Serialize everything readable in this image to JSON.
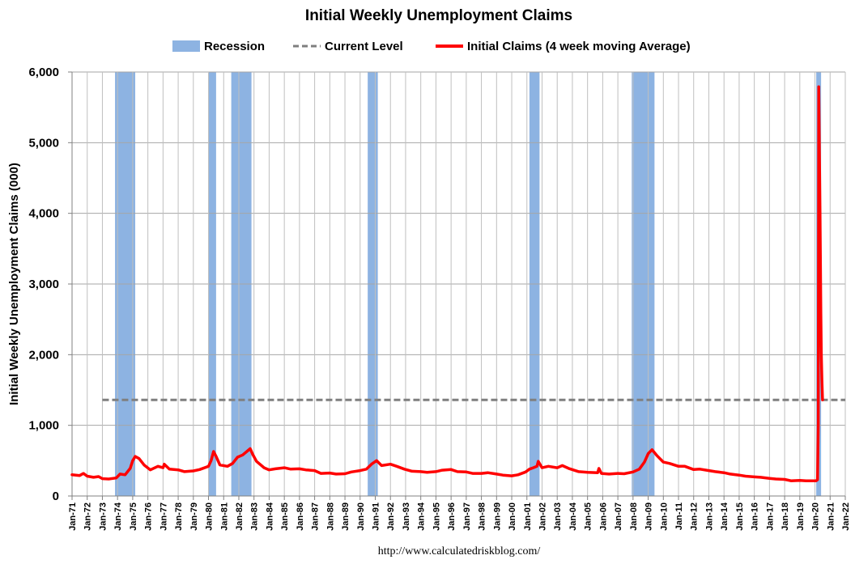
{
  "chart_data": {
    "type": "line",
    "title": "Initial Weekly Unemployment Claims",
    "ylabel": "Initial Weekly Unemployment Claims (000)",
    "xlabel": "",
    "source_note": "http://www.calculatedriskblog.com/",
    "ylim": [
      0,
      6000
    ],
    "xlim": [
      "1971-01",
      "2022-01"
    ],
    "grid": true,
    "legend_placement": "top",
    "yticks": [
      "0",
      "1,000",
      "2,000",
      "3,000",
      "4,000",
      "5,000",
      "6,000"
    ],
    "xticks": [
      "Jan-71",
      "Jan-72",
      "Jan-73",
      "Jan-74",
      "Jan-75",
      "Jan-76",
      "Jan-77",
      "Jan-78",
      "Jan-79",
      "Jan-80",
      "Jan-81",
      "Jan-82",
      "Jan-83",
      "Jan-84",
      "Jan-85",
      "Jan-86",
      "Jan-87",
      "Jan-88",
      "Jan-89",
      "Jan-90",
      "Jan-91",
      "Jan-92",
      "Jan-93",
      "Jan-94",
      "Jan-95",
      "Jan-96",
      "Jan-97",
      "Jan-98",
      "Jan-99",
      "Jan-00",
      "Jan-01",
      "Jan-02",
      "Jan-03",
      "Jan-04",
      "Jan-05",
      "Jan-06",
      "Jan-07",
      "Jan-08",
      "Jan-09",
      "Jan-10",
      "Jan-11",
      "Jan-12",
      "Jan-13",
      "Jan-14",
      "Jan-15",
      "Jan-16",
      "Jan-17",
      "Jan-18",
      "Jan-19",
      "Jan-20",
      "Jan-21",
      "Jan-22"
    ],
    "legend": {
      "recession": "Recession",
      "current": "Current Level",
      "claims": "Initial Claims (4 week moving Average)"
    },
    "colors": {
      "recession": "#8db3e2",
      "current": "#7f7f7f",
      "claims": "#ff0000",
      "grid": "#a6a6a6"
    },
    "recessions": [
      {
        "start": "1973-11",
        "end": "1975-03"
      },
      {
        "start": "1980-01",
        "end": "1980-07"
      },
      {
        "start": "1981-07",
        "end": "1982-11"
      },
      {
        "start": "1990-07",
        "end": "1991-03"
      },
      {
        "start": "2001-03",
        "end": "2001-11"
      },
      {
        "start": "2007-12",
        "end": "2009-06"
      },
      {
        "start": "2020-02",
        "end": "2020-04"
      }
    ],
    "current_level": {
      "value": 1360,
      "x_start": "1973-01",
      "x_end": "2022-01"
    },
    "series": [
      {
        "name": "Initial Claims (4 week moving Average)",
        "points": [
          [
            "1971-01",
            300
          ],
          [
            "1971-07",
            290
          ],
          [
            "1971-10",
            320
          ],
          [
            "1972-01",
            280
          ],
          [
            "1972-06",
            265
          ],
          [
            "1972-10",
            275
          ],
          [
            "1973-01",
            245
          ],
          [
            "1973-06",
            240
          ],
          [
            "1973-12",
            255
          ],
          [
            "1974-03",
            310
          ],
          [
            "1974-07",
            300
          ],
          [
            "1974-11",
            390
          ],
          [
            "1975-01",
            500
          ],
          [
            "1975-03",
            560
          ],
          [
            "1975-06",
            530
          ],
          [
            "1975-10",
            440
          ],
          [
            "1976-03",
            370
          ],
          [
            "1976-09",
            420
          ],
          [
            "1977-01",
            400
          ],
          [
            "1977-02",
            450
          ],
          [
            "1977-06",
            380
          ],
          [
            "1978-01",
            370
          ],
          [
            "1978-06",
            345
          ],
          [
            "1979-01",
            355
          ],
          [
            "1979-06",
            375
          ],
          [
            "1980-01",
            420
          ],
          [
            "1980-03",
            500
          ],
          [
            "1980-05",
            630
          ],
          [
            "1980-07",
            560
          ],
          [
            "1980-10",
            440
          ],
          [
            "1981-04",
            420
          ],
          [
            "1981-08",
            460
          ],
          [
            "1981-12",
            550
          ],
          [
            "1982-04",
            580
          ],
          [
            "1982-08",
            640
          ],
          [
            "1982-10",
            670
          ],
          [
            "1982-12",
            590
          ],
          [
            "1983-03",
            490
          ],
          [
            "1983-09",
            400
          ],
          [
            "1984-01",
            370
          ],
          [
            "1984-06",
            385
          ],
          [
            "1985-01",
            400
          ],
          [
            "1985-06",
            380
          ],
          [
            "1986-01",
            385
          ],
          [
            "1986-06",
            370
          ],
          [
            "1987-01",
            360
          ],
          [
            "1987-06",
            320
          ],
          [
            "1988-01",
            325
          ],
          [
            "1988-06",
            310
          ],
          [
            "1989-01",
            315
          ],
          [
            "1989-06",
            340
          ],
          [
            "1990-01",
            360
          ],
          [
            "1990-06",
            380
          ],
          [
            "1990-10",
            450
          ],
          [
            "1991-02",
            500
          ],
          [
            "1991-06",
            430
          ],
          [
            "1992-01",
            450
          ],
          [
            "1992-06",
            420
          ],
          [
            "1992-12",
            380
          ],
          [
            "1993-06",
            350
          ],
          [
            "1994-01",
            345
          ],
          [
            "1994-06",
            335
          ],
          [
            "1995-01",
            345
          ],
          [
            "1995-06",
            365
          ],
          [
            "1996-01",
            375
          ],
          [
            "1996-06",
            345
          ],
          [
            "1997-01",
            340
          ],
          [
            "1997-06",
            320
          ],
          [
            "1998-01",
            320
          ],
          [
            "1998-06",
            330
          ],
          [
            "1999-01",
            310
          ],
          [
            "1999-06",
            295
          ],
          [
            "2000-01",
            285
          ],
          [
            "2000-06",
            300
          ],
          [
            "2000-12",
            340
          ],
          [
            "2001-03",
            380
          ],
          [
            "2001-06",
            400
          ],
          [
            "2001-09",
            420
          ],
          [
            "2001-10",
            490
          ],
          [
            "2002-01",
            400
          ],
          [
            "2002-06",
            420
          ],
          [
            "2003-01",
            400
          ],
          [
            "2003-05",
            430
          ],
          [
            "2003-10",
            390
          ],
          [
            "2004-06",
            345
          ],
          [
            "2005-01",
            335
          ],
          [
            "2005-09",
            330
          ],
          [
            "2005-10",
            390
          ],
          [
            "2005-12",
            320
          ],
          [
            "2006-06",
            310
          ],
          [
            "2007-01",
            320
          ],
          [
            "2007-06",
            315
          ],
          [
            "2008-01",
            340
          ],
          [
            "2008-06",
            380
          ],
          [
            "2008-10",
            480
          ],
          [
            "2009-01",
            600
          ],
          [
            "2009-04",
            655
          ],
          [
            "2009-08",
            570
          ],
          [
            "2010-01",
            480
          ],
          [
            "2010-06",
            460
          ],
          [
            "2011-01",
            420
          ],
          [
            "2011-06",
            420
          ],
          [
            "2012-01",
            375
          ],
          [
            "2012-06",
            380
          ],
          [
            "2013-01",
            360
          ],
          [
            "2013-06",
            345
          ],
          [
            "2014-01",
            330
          ],
          [
            "2014-06",
            310
          ],
          [
            "2015-01",
            295
          ],
          [
            "2015-06",
            280
          ],
          [
            "2016-01",
            270
          ],
          [
            "2016-06",
            265
          ],
          [
            "2017-01",
            250
          ],
          [
            "2017-06",
            240
          ],
          [
            "2018-01",
            235
          ],
          [
            "2018-06",
            215
          ],
          [
            "2019-01",
            220
          ],
          [
            "2019-06",
            215
          ],
          [
            "2020-02",
            215
          ],
          [
            "2020-03",
            230
          ],
          [
            "2020-03-20",
            1000
          ],
          [
            "2020-04",
            5790
          ],
          [
            "2020-05",
            4000
          ],
          [
            "2020-05-20",
            2600
          ],
          [
            "2020-06",
            2000
          ],
          [
            "2020-06-15",
            1650
          ],
          [
            "2020-07",
            1360
          ]
        ]
      }
    ]
  }
}
